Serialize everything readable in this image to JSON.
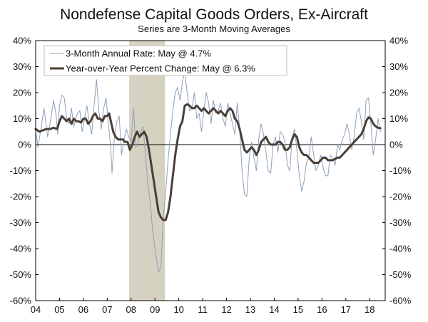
{
  "chart_data": {
    "type": "line",
    "title": "Nondefense Capital Goods Orders, Ex-Aircraft",
    "subtitle": "Series are 3-Month Moving Averages",
    "xlabel": "",
    "ylabel": "",
    "ylim": [
      -60,
      40
    ],
    "y_ticks": [
      -60,
      -50,
      -40,
      -30,
      -20,
      -10,
      0,
      10,
      20,
      30,
      40
    ],
    "y_tick_labels": [
      "-60%",
      "-50%",
      "-40%",
      "-30%",
      "-20%",
      "-10%",
      "0%",
      "10%",
      "20%",
      "30%",
      "40%"
    ],
    "y_tick_labels_right": [
      "-60%",
      "-50%",
      "-40%",
      "-30%",
      "-20%",
      "-10%",
      "0%",
      "10%",
      "20%",
      "30%",
      "40%"
    ],
    "xlim": [
      2004.0,
      2018.65
    ],
    "x_ticks": [
      2004,
      2005,
      2006,
      2007,
      2008,
      2009,
      2010,
      2011,
      2012,
      2013,
      2014,
      2015,
      2016,
      2017,
      2018
    ],
    "x_tick_labels": [
      "04",
      "05",
      "06",
      "07",
      "08",
      "09",
      "10",
      "11",
      "12",
      "13",
      "14",
      "15",
      "16",
      "17",
      "18"
    ],
    "grid": false,
    "zero_line": true,
    "legend_position": "top-left",
    "recession_shading": [
      {
        "start": 2007.92,
        "end": 2009.42,
        "color": "#d6d2c2"
      }
    ],
    "series": [
      {
        "name": "3-Month Annual Rate: May @ 4.7%",
        "color": "#8da1bb",
        "width": 1,
        "points": [
          [
            2004.0,
            5
          ],
          [
            2004.1,
            -1
          ],
          [
            2004.25,
            8
          ],
          [
            2004.35,
            14
          ],
          [
            2004.5,
            3
          ],
          [
            2004.6,
            8
          ],
          [
            2004.75,
            17
          ],
          [
            2004.85,
            12
          ],
          [
            2004.92,
            4
          ],
          [
            2005.0,
            15
          ],
          [
            2005.1,
            19
          ],
          [
            2005.2,
            18
          ],
          [
            2005.3,
            10
          ],
          [
            2005.4,
            8
          ],
          [
            2005.5,
            14
          ],
          [
            2005.6,
            7
          ],
          [
            2005.75,
            12
          ],
          [
            2005.85,
            13
          ],
          [
            2005.95,
            5
          ],
          [
            2006.05,
            10
          ],
          [
            2006.15,
            15
          ],
          [
            2006.25,
            8
          ],
          [
            2006.35,
            4
          ],
          [
            2006.45,
            15
          ],
          [
            2006.55,
            25
          ],
          [
            2006.65,
            13
          ],
          [
            2006.75,
            6
          ],
          [
            2006.85,
            14
          ],
          [
            2006.95,
            18
          ],
          [
            2007.05,
            8
          ],
          [
            2007.15,
            -2
          ],
          [
            2007.2,
            -11
          ],
          [
            2007.3,
            3
          ],
          [
            2007.4,
            9
          ],
          [
            2007.5,
            11
          ],
          [
            2007.6,
            -4
          ],
          [
            2007.7,
            2
          ],
          [
            2007.8,
            6
          ],
          [
            2007.9,
            3
          ],
          [
            2008.0,
            1
          ],
          [
            2008.1,
            14
          ],
          [
            2008.2,
            -1
          ],
          [
            2008.3,
            1
          ],
          [
            2008.4,
            5
          ],
          [
            2008.5,
            7
          ],
          [
            2008.6,
            -4
          ],
          [
            2008.7,
            -15
          ],
          [
            2008.8,
            -22
          ],
          [
            2008.9,
            -33
          ],
          [
            2009.0,
            -40
          ],
          [
            2009.1,
            -46
          ],
          [
            2009.15,
            -49
          ],
          [
            2009.25,
            -47
          ],
          [
            2009.35,
            -28
          ],
          [
            2009.45,
            -18
          ],
          [
            2009.55,
            -6
          ],
          [
            2009.65,
            4
          ],
          [
            2009.75,
            13
          ],
          [
            2009.85,
            20
          ],
          [
            2009.95,
            22
          ],
          [
            2010.05,
            17
          ],
          [
            2010.15,
            24
          ],
          [
            2010.25,
            28
          ],
          [
            2010.35,
            20
          ],
          [
            2010.45,
            13
          ],
          [
            2010.55,
            14
          ],
          [
            2010.65,
            20
          ],
          [
            2010.75,
            10
          ],
          [
            2010.85,
            12
          ],
          [
            2010.95,
            5
          ],
          [
            2011.05,
            13
          ],
          [
            2011.15,
            20
          ],
          [
            2011.25,
            16
          ],
          [
            2011.35,
            8
          ],
          [
            2011.45,
            17
          ],
          [
            2011.55,
            12
          ],
          [
            2011.65,
            13
          ],
          [
            2011.75,
            16
          ],
          [
            2011.85,
            10
          ],
          [
            2011.95,
            7
          ],
          [
            2012.05,
            16
          ],
          [
            2012.15,
            12
          ],
          [
            2012.25,
            8
          ],
          [
            2012.35,
            4
          ],
          [
            2012.45,
            16
          ],
          [
            2012.55,
            6
          ],
          [
            2012.65,
            -10
          ],
          [
            2012.75,
            -19
          ],
          [
            2012.85,
            -20
          ],
          [
            2012.95,
            -5
          ],
          [
            2013.05,
            1
          ],
          [
            2013.15,
            -5
          ],
          [
            2013.25,
            -10
          ],
          [
            2013.35,
            2
          ],
          [
            2013.45,
            8
          ],
          [
            2013.55,
            4
          ],
          [
            2013.65,
            -3
          ],
          [
            2013.75,
            -10
          ],
          [
            2013.85,
            -11
          ],
          [
            2013.95,
            0
          ],
          [
            2014.05,
            3
          ],
          [
            2014.15,
            -3
          ],
          [
            2014.25,
            5
          ],
          [
            2014.35,
            4
          ],
          [
            2014.45,
            1
          ],
          [
            2014.55,
            -8
          ],
          [
            2014.65,
            -10
          ],
          [
            2014.75,
            3
          ],
          [
            2014.85,
            6
          ],
          [
            2014.95,
            -2
          ],
          [
            2015.05,
            -12
          ],
          [
            2015.15,
            -18
          ],
          [
            2015.25,
            -14
          ],
          [
            2015.35,
            -7
          ],
          [
            2015.45,
            -5
          ],
          [
            2015.55,
            3
          ],
          [
            2015.65,
            -4
          ],
          [
            2015.75,
            -10
          ],
          [
            2015.85,
            -8
          ],
          [
            2015.95,
            -4
          ],
          [
            2016.05,
            -9
          ],
          [
            2016.15,
            -12
          ],
          [
            2016.25,
            -12
          ],
          [
            2016.35,
            -4
          ],
          [
            2016.45,
            -5
          ],
          [
            2016.55,
            -8
          ],
          [
            2016.65,
            0
          ],
          [
            2016.75,
            -2
          ],
          [
            2016.85,
            2
          ],
          [
            2016.95,
            4
          ],
          [
            2017.05,
            8
          ],
          [
            2017.15,
            4
          ],
          [
            2017.25,
            -2
          ],
          [
            2017.35,
            3
          ],
          [
            2017.45,
            12
          ],
          [
            2017.55,
            14
          ],
          [
            2017.65,
            9
          ],
          [
            2017.75,
            2
          ],
          [
            2017.85,
            17
          ],
          [
            2017.95,
            18
          ],
          [
            2018.05,
            8
          ],
          [
            2018.15,
            -4
          ],
          [
            2018.25,
            2
          ],
          [
            2018.35,
            10
          ],
          [
            2018.45,
            4.7
          ]
        ]
      },
      {
        "name": "Year-over-Year Percent Change: May @ 6.3%",
        "color": "#4a3f36",
        "width": 3,
        "points": [
          [
            2004.0,
            6
          ],
          [
            2004.15,
            5
          ],
          [
            2004.3,
            5.5
          ],
          [
            2004.45,
            6
          ],
          [
            2004.6,
            6
          ],
          [
            2004.75,
            6.5
          ],
          [
            2004.9,
            6
          ],
          [
            2005.0,
            9
          ],
          [
            2005.1,
            11
          ],
          [
            2005.2,
            10
          ],
          [
            2005.3,
            9
          ],
          [
            2005.4,
            10
          ],
          [
            2005.5,
            8
          ],
          [
            2005.6,
            10
          ],
          [
            2005.7,
            9
          ],
          [
            2005.8,
            9
          ],
          [
            2005.9,
            8.5
          ],
          [
            2006.0,
            10
          ],
          [
            2006.1,
            10
          ],
          [
            2006.2,
            8
          ],
          [
            2006.3,
            9
          ],
          [
            2006.4,
            11
          ],
          [
            2006.5,
            12
          ],
          [
            2006.6,
            10
          ],
          [
            2006.7,
            10
          ],
          [
            2006.8,
            9
          ],
          [
            2006.9,
            11
          ],
          [
            2007.0,
            11
          ],
          [
            2007.08,
            12
          ],
          [
            2007.15,
            9
          ],
          [
            2007.25,
            5
          ],
          [
            2007.35,
            3
          ],
          [
            2007.45,
            2
          ],
          [
            2007.55,
            2
          ],
          [
            2007.65,
            2
          ],
          [
            2007.75,
            1
          ],
          [
            2007.85,
            1
          ],
          [
            2007.95,
            -2
          ],
          [
            2008.05,
            0
          ],
          [
            2008.15,
            3
          ],
          [
            2008.25,
            5
          ],
          [
            2008.35,
            3
          ],
          [
            2008.45,
            4
          ],
          [
            2008.55,
            5
          ],
          [
            2008.65,
            3
          ],
          [
            2008.75,
            -2
          ],
          [
            2008.85,
            -8
          ],
          [
            2008.95,
            -14
          ],
          [
            2009.05,
            -20
          ],
          [
            2009.15,
            -26
          ],
          [
            2009.25,
            -28
          ],
          [
            2009.35,
            -29
          ],
          [
            2009.45,
            -29
          ],
          [
            2009.55,
            -26
          ],
          [
            2009.65,
            -20
          ],
          [
            2009.75,
            -12
          ],
          [
            2009.85,
            -4
          ],
          [
            2009.95,
            2
          ],
          [
            2010.05,
            7
          ],
          [
            2010.15,
            9
          ],
          [
            2010.25,
            15
          ],
          [
            2010.35,
            15.5
          ],
          [
            2010.45,
            15
          ],
          [
            2010.55,
            14
          ],
          [
            2010.65,
            14
          ],
          [
            2010.75,
            15
          ],
          [
            2010.85,
            14
          ],
          [
            2010.95,
            13
          ],
          [
            2011.05,
            14
          ],
          [
            2011.15,
            13
          ],
          [
            2011.25,
            12
          ],
          [
            2011.35,
            13
          ],
          [
            2011.45,
            14
          ],
          [
            2011.55,
            13
          ],
          [
            2011.65,
            12
          ],
          [
            2011.75,
            13
          ],
          [
            2011.85,
            12
          ],
          [
            2011.95,
            11
          ],
          [
            2012.05,
            13
          ],
          [
            2012.15,
            14
          ],
          [
            2012.25,
            13
          ],
          [
            2012.35,
            10
          ],
          [
            2012.45,
            9
          ],
          [
            2012.55,
            6
          ],
          [
            2012.65,
            2
          ],
          [
            2012.75,
            -2
          ],
          [
            2012.85,
            -3
          ],
          [
            2012.95,
            -2
          ],
          [
            2013.05,
            -1
          ],
          [
            2013.15,
            -2
          ],
          [
            2013.25,
            -4
          ],
          [
            2013.35,
            -2
          ],
          [
            2013.45,
            1
          ],
          [
            2013.55,
            2
          ],
          [
            2013.65,
            3
          ],
          [
            2013.75,
            1
          ],
          [
            2013.85,
            0
          ],
          [
            2013.95,
            0
          ],
          [
            2014.05,
            0
          ],
          [
            2014.15,
            1
          ],
          [
            2014.25,
            1
          ],
          [
            2014.35,
            0
          ],
          [
            2014.45,
            -2
          ],
          [
            2014.55,
            -2
          ],
          [
            2014.65,
            -1
          ],
          [
            2014.75,
            2
          ],
          [
            2014.85,
            4
          ],
          [
            2014.95,
            3
          ],
          [
            2015.05,
            -1
          ],
          [
            2015.15,
            -3
          ],
          [
            2015.25,
            -4
          ],
          [
            2015.35,
            -4
          ],
          [
            2015.45,
            -5
          ],
          [
            2015.55,
            -6
          ],
          [
            2015.65,
            -7
          ],
          [
            2015.75,
            -7
          ],
          [
            2015.85,
            -7
          ],
          [
            2015.95,
            -6
          ],
          [
            2016.05,
            -5
          ],
          [
            2016.15,
            -5
          ],
          [
            2016.25,
            -6
          ],
          [
            2016.35,
            -6
          ],
          [
            2016.45,
            -6
          ],
          [
            2016.55,
            -5.5
          ],
          [
            2016.65,
            -5
          ],
          [
            2016.75,
            -5
          ],
          [
            2016.85,
            -4
          ],
          [
            2016.95,
            -3
          ],
          [
            2017.05,
            -2
          ],
          [
            2017.15,
            -1
          ],
          [
            2017.25,
            0
          ],
          [
            2017.35,
            1
          ],
          [
            2017.45,
            2
          ],
          [
            2017.55,
            3
          ],
          [
            2017.65,
            4
          ],
          [
            2017.75,
            6
          ],
          [
            2017.85,
            9
          ],
          [
            2017.95,
            10.5
          ],
          [
            2018.05,
            10
          ],
          [
            2018.15,
            8
          ],
          [
            2018.25,
            7
          ],
          [
            2018.35,
            6.5
          ],
          [
            2018.45,
            6.3
          ]
        ]
      }
    ]
  }
}
